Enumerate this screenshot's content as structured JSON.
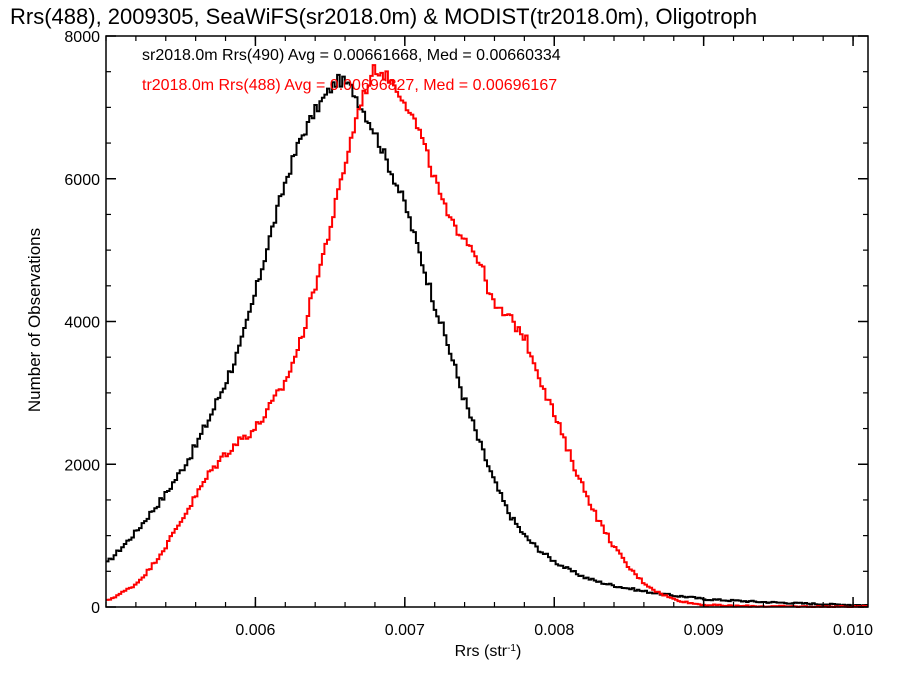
{
  "chart_data": {
    "type": "line",
    "title": "Rrs(488), 2009305, SeaWiFS(sr2018.0m) & MODIST(tr2018.0m), Oligotroph",
    "xlabel": "Rrs (str",
    "xlabel_sup": "-1",
    "xlabel_end": ")",
    "ylabel": "Number of Observations",
    "xlim": [
      0.005,
      0.0101
    ],
    "ylim": [
      0,
      8000
    ],
    "x_ticks": [
      0.006,
      0.007,
      0.008,
      0.009,
      0.01
    ],
    "x_tick_labels": [
      "0.006",
      "0.007",
      "0.008",
      "0.009",
      "0.010"
    ],
    "y_ticks": [
      0,
      2000,
      4000,
      6000,
      8000
    ],
    "y_tick_labels": [
      "0",
      "2000",
      "4000",
      "6000",
      "8000"
    ],
    "grid": false,
    "legend_placement": "top-left",
    "series": [
      {
        "name": "sr2018.0m Rrs(490) Avg = 0.00661668, Med = 0.00660334",
        "color": "#000000",
        "x": [
          0.005,
          0.0051,
          0.0052,
          0.0053,
          0.0054,
          0.0055,
          0.0056,
          0.0057,
          0.0058,
          0.0059,
          0.006,
          0.0061,
          0.0062,
          0.0063,
          0.0064,
          0.0065,
          0.00655,
          0.0066,
          0.00665,
          0.0067,
          0.0068,
          0.0069,
          0.007,
          0.0071,
          0.0072,
          0.0073,
          0.0074,
          0.0075,
          0.0076,
          0.0077,
          0.0078,
          0.0079,
          0.008,
          0.0081,
          0.0082,
          0.0083,
          0.0084,
          0.0085,
          0.0086,
          0.0087,
          0.0088,
          0.0089,
          0.009,
          0.0092,
          0.0094,
          0.0096,
          0.0098,
          0.01,
          0.0101
        ],
        "y": [
          600,
          820,
          1050,
          1320,
          1580,
          1900,
          2250,
          2680,
          3150,
          3650,
          4400,
          5200,
          5950,
          6550,
          6950,
          7250,
          7380,
          7350,
          7250,
          7050,
          6650,
          6150,
          5650,
          4950,
          4250,
          3600,
          2900,
          2300,
          1750,
          1300,
          1000,
          800,
          640,
          520,
          420,
          350,
          300,
          260,
          220,
          190,
          160,
          140,
          110,
          90,
          70,
          55,
          40,
          30,
          25
        ]
      },
      {
        "name": "tr2018.0m Rrs(488) Avg = 0.00696827, Med = 0.00696167",
        "color": "#ff0000",
        "x": [
          0.005,
          0.0051,
          0.0052,
          0.0053,
          0.0054,
          0.0055,
          0.0056,
          0.0057,
          0.0058,
          0.0059,
          0.006,
          0.0061,
          0.0062,
          0.0063,
          0.0064,
          0.0065,
          0.0066,
          0.0067,
          0.00675,
          0.0068,
          0.0069,
          0.007,
          0.0071,
          0.0072,
          0.0073,
          0.0074,
          0.0075,
          0.0076,
          0.0077,
          0.0078,
          0.0079,
          0.008,
          0.0081,
          0.0082,
          0.0083,
          0.0084,
          0.0085,
          0.0086,
          0.0087,
          0.0088,
          0.0089,
          0.009,
          0.0092,
          0.0094,
          0.0096,
          0.0098,
          0.01,
          0.0101
        ],
        "y": [
          80,
          190,
          320,
          550,
          850,
          1200,
          1550,
          1900,
          2150,
          2350,
          2500,
          2800,
          3150,
          3700,
          4500,
          5300,
          6200,
          7050,
          7300,
          7550,
          7400,
          7100,
          6650,
          6000,
          5400,
          5200,
          4850,
          4200,
          4050,
          3800,
          3250,
          2700,
          2150,
          1650,
          1200,
          850,
          550,
          340,
          200,
          110,
          60,
          30,
          15,
          10,
          8,
          5,
          5,
          5
        ]
      }
    ]
  }
}
